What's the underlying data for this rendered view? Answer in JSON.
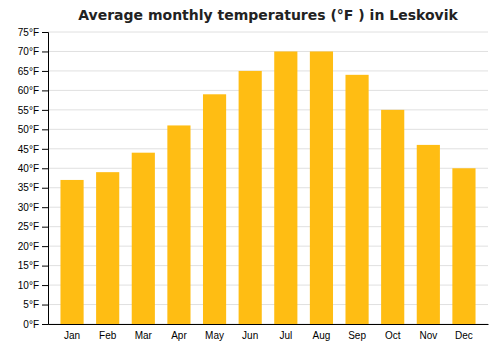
{
  "chart_data": {
    "type": "bar",
    "title": "Average monthly temperatures (°F ) in Leskovik",
    "categories": [
      "Jan",
      "Feb",
      "Mar",
      "Apr",
      "May",
      "Jun",
      "Jul",
      "Aug",
      "Sep",
      "Oct",
      "Nov",
      "Dec"
    ],
    "values": [
      37,
      39,
      44,
      51,
      59,
      65,
      70,
      70,
      64,
      55,
      46,
      40
    ],
    "color": "#FFBD13",
    "ylim": [
      0,
      75
    ],
    "yticks": [
      {
        "value": 0,
        "label": "0°F"
      },
      {
        "value": 5,
        "label": "5°F"
      },
      {
        "value": 10,
        "label": "10°F"
      },
      {
        "value": 15,
        "label": "15°F"
      },
      {
        "value": 20,
        "label": "20°F"
      },
      {
        "value": 25,
        "label": "25°F"
      },
      {
        "value": 30,
        "label": "30°F"
      },
      {
        "value": 35,
        "label": "35°F"
      },
      {
        "value": 40,
        "label": "40°F"
      },
      {
        "value": 45,
        "label": "45°F"
      },
      {
        "value": 50,
        "label": "50°F"
      },
      {
        "value": 55,
        "label": "55°F"
      },
      {
        "value": 60,
        "label": "60°F"
      },
      {
        "value": 65,
        "label": "65°F"
      },
      {
        "value": 70,
        "label": "70°F"
      },
      {
        "value": 75,
        "label": "75°F"
      }
    ],
    "grid": true
  }
}
